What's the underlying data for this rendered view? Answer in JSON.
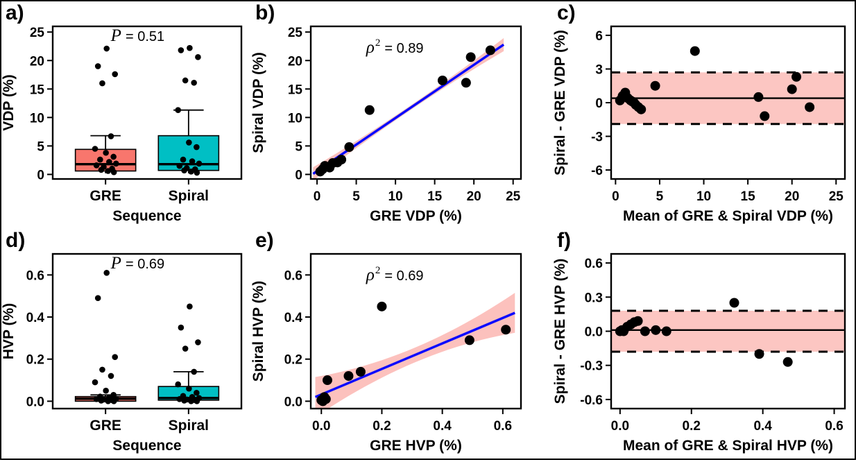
{
  "colors": {
    "gre_box": "#F8766D",
    "spiral_box": "#00BFC4",
    "regression_line": "#0A0AFF",
    "confidence_band": "#F8766D",
    "points": "#000000"
  },
  "chart_data": [
    {
      "panel": "a)",
      "type": "box",
      "annotation": {
        "symbol": "P",
        "sup": "",
        "rest": "= 0.51"
      },
      "xlabel": "Sequence",
      "ylabel": "VDP (%)",
      "ylim": [
        -0.8,
        26
      ],
      "yticks": [
        0,
        5,
        10,
        15,
        20,
        25
      ],
      "ytick_labels": [
        "0",
        "5",
        "10",
        "15",
        "20",
        "25"
      ],
      "categories": [
        "GRE",
        "Spiral"
      ],
      "boxes": [
        {
          "category": "GRE",
          "fill": "#F8766D",
          "whisker_low": 0.2,
          "q1": 0.6,
          "median": 1.8,
          "q3": 4.4,
          "whisker_high": 6.8,
          "points": [
            22.1,
            19.0,
            17.6,
            16.0,
            6.7,
            4.5,
            3.8,
            3.1,
            2.6,
            2.2,
            1.9,
            1.6,
            1.3,
            1.0,
            0.8,
            0.6,
            0.4
          ]
        },
        {
          "category": "Spiral",
          "fill": "#00BFC4",
          "whisker_low": 0.2,
          "q1": 0.7,
          "median": 1.8,
          "q3": 6.8,
          "whisker_high": 11.3,
          "points": [
            22.2,
            21.8,
            20.6,
            16.5,
            16.1,
            11.3,
            5.6,
            4.8,
            2.6,
            2.3,
            1.9,
            1.5,
            1.1,
            0.9,
            0.7,
            0.5,
            0.3
          ]
        }
      ]
    },
    {
      "panel": "b)",
      "type": "scatter",
      "annotation": {
        "symbol": "ρ",
        "sup": "2",
        "rest": "= 0.89"
      },
      "xlabel": "GRE VDP (%)",
      "ylabel": "Spiral VDP (%)",
      "xlim": [
        -0.8,
        26
      ],
      "ylim": [
        -0.8,
        26
      ],
      "xticks": [
        0,
        5,
        10,
        15,
        20,
        25
      ],
      "xtick_labels": [
        "0",
        "5",
        "10",
        "15",
        "20",
        "25"
      ],
      "yticks": [
        0,
        5,
        10,
        15,
        20,
        25
      ],
      "ytick_labels": [
        "0",
        "5",
        "10",
        "15",
        "20",
        "25"
      ],
      "points": [
        [
          0.4,
          0.5
        ],
        [
          0.7,
          0.9
        ],
        [
          1.0,
          1.5
        ],
        [
          1.6,
          1.2
        ],
        [
          2.0,
          2.0
        ],
        [
          2.6,
          2.1
        ],
        [
          3.1,
          2.6
        ],
        [
          4.1,
          4.8
        ],
        [
          6.7,
          11.3
        ],
        [
          16.0,
          16.5
        ],
        [
          19.0,
          16.1
        ],
        [
          19.6,
          20.6
        ],
        [
          22.1,
          21.8
        ]
      ],
      "fit": {
        "x1": -0.5,
        "y1": 0.1,
        "x2": 23.8,
        "y2": 22.8,
        "line_color": "#0A0AFF",
        "band_color": "#F8766D",
        "band_end": 1.15,
        "band_mid": 0.4
      }
    },
    {
      "panel": "c)",
      "type": "blandaltman",
      "xlabel": "Mean of GRE & Spiral VDP (%)",
      "ylabel": "Spiral - GRE VDP (%)",
      "xlim": [
        -0.5,
        26
      ],
      "ylim": [
        -6.8,
        6.8
      ],
      "xticks": [
        0,
        5,
        10,
        15,
        20,
        25
      ],
      "xtick_labels": [
        "0",
        "5",
        "10",
        "15",
        "20",
        "25"
      ],
      "yticks": [
        -6,
        -3,
        0,
        3,
        6
      ],
      "ytick_labels": [
        "-6",
        "-3",
        "0",
        "3",
        "6"
      ],
      "mean_bias": 0.4,
      "upper_loa": 2.7,
      "lower_loa": -1.9,
      "band_color": "#F8766D",
      "points": [
        [
          0.5,
          0.2
        ],
        [
          0.8,
          0.6
        ],
        [
          1.1,
          0.9
        ],
        [
          1.4,
          0.4
        ],
        [
          1.7,
          0.2
        ],
        [
          1.9,
          0.1
        ],
        [
          2.1,
          0.0
        ],
        [
          2.3,
          -0.2
        ],
        [
          2.6,
          -0.4
        ],
        [
          2.9,
          -0.6
        ],
        [
          4.5,
          1.5
        ],
        [
          9.0,
          4.6
        ],
        [
          16.2,
          0.5
        ],
        [
          16.9,
          -1.2
        ],
        [
          20.0,
          1.2
        ],
        [
          20.5,
          2.3
        ],
        [
          22.0,
          -0.4
        ]
      ]
    },
    {
      "panel": "d)",
      "type": "box",
      "annotation": {
        "symbol": "P",
        "sup": "",
        "rest": "= 0.69"
      },
      "xlabel": "Sequence",
      "ylabel": "HVP (%)",
      "ylim": [
        -0.035,
        0.7
      ],
      "yticks": [
        0.0,
        0.2,
        0.4,
        0.6
      ],
      "ytick_labels": [
        "0.0",
        "0.2",
        "0.4",
        "0.6"
      ],
      "categories": [
        "GRE",
        "Spiral"
      ],
      "boxes": [
        {
          "category": "GRE",
          "fill": "#F8766D",
          "whisker_low": 0.0,
          "q1": 0.0,
          "median": 0.012,
          "q3": 0.022,
          "whisker_high": 0.03,
          "points": [
            0.61,
            0.49,
            0.21,
            0.15,
            0.12,
            0.09,
            0.05,
            0.03,
            0.022,
            0.018,
            0.012,
            0.01,
            0.008,
            0.005,
            0.003,
            0.0,
            0.0
          ]
        },
        {
          "category": "Spiral",
          "fill": "#00BFC4",
          "whisker_low": 0.0,
          "q1": 0.005,
          "median": 0.015,
          "q3": 0.07,
          "whisker_high": 0.14,
          "points": [
            0.45,
            0.35,
            0.28,
            0.25,
            0.14,
            0.08,
            0.06,
            0.04,
            0.025,
            0.02,
            0.015,
            0.01,
            0.008,
            0.005,
            0.003,
            0.0,
            0.0
          ]
        }
      ]
    },
    {
      "panel": "e)",
      "type": "scatter",
      "annotation": {
        "symbol": "ρ",
        "sup": "2",
        "rest": "= 0.69"
      },
      "xlabel": "GRE HVP (%)",
      "ylabel": "Spiral HVP (%)",
      "xlim": [
        -0.035,
        0.66
      ],
      "ylim": [
        -0.035,
        0.7
      ],
      "xticks": [
        0.0,
        0.2,
        0.4,
        0.6
      ],
      "xtick_labels": [
        "0.0",
        "0.2",
        "0.4",
        "0.6"
      ],
      "yticks": [
        0.0,
        0.2,
        0.4,
        0.6
      ],
      "ytick_labels": [
        "0.0",
        "0.2",
        "0.4",
        "0.6"
      ],
      "points": [
        [
          0.0,
          0.005
        ],
        [
          0.005,
          0.0
        ],
        [
          0.01,
          0.02
        ],
        [
          0.015,
          0.01
        ],
        [
          0.02,
          0.1
        ],
        [
          0.09,
          0.12
        ],
        [
          0.13,
          0.14
        ],
        [
          0.2,
          0.45
        ],
        [
          0.49,
          0.29
        ],
        [
          0.61,
          0.34
        ]
      ],
      "fit": {
        "x1": -0.02,
        "y1": 0.02,
        "x2": 0.64,
        "y2": 0.42,
        "line_color": "#0A0AFF",
        "band_color": "#F8766D",
        "band_end": 0.095,
        "band_mid": 0.035
      }
    },
    {
      "panel": "f)",
      "type": "blandaltman",
      "xlabel": "Mean of GRE & Spiral HVP (%)",
      "ylabel": "Spiral - GRE HVP (%)",
      "xlim": [
        -0.025,
        0.63
      ],
      "ylim": [
        -0.68,
        0.68
      ],
      "xticks": [
        0.0,
        0.2,
        0.4,
        0.6
      ],
      "xtick_labels": [
        "0.0",
        "0.2",
        "0.4",
        "0.6"
      ],
      "yticks": [
        -0.6,
        -0.3,
        0.0,
        0.3,
        0.6
      ],
      "ytick_labels": [
        "-0.6",
        "-0.3",
        "0.0",
        "0.3",
        "0.6"
      ],
      "mean_bias": 0.01,
      "upper_loa": 0.18,
      "lower_loa": -0.18,
      "band_color": "#F8766D",
      "points": [
        [
          0.0,
          0.0
        ],
        [
          0.005,
          0.01
        ],
        [
          0.01,
          0.0
        ],
        [
          0.02,
          0.04
        ],
        [
          0.03,
          0.06
        ],
        [
          0.04,
          0.08
        ],
        [
          0.05,
          0.09
        ],
        [
          0.07,
          0.0
        ],
        [
          0.1,
          0.01
        ],
        [
          0.13,
          0.0
        ],
        [
          0.32,
          0.25
        ],
        [
          0.39,
          -0.2
        ],
        [
          0.47,
          -0.27
        ]
      ]
    }
  ]
}
